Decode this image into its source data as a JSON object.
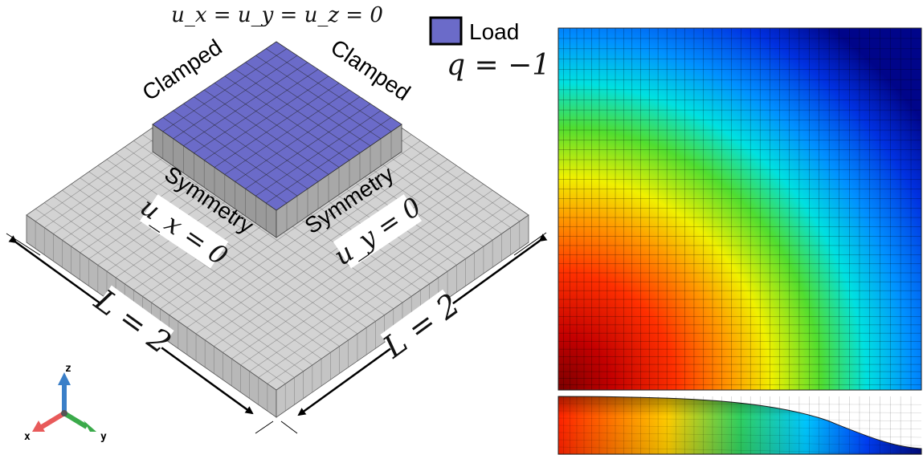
{
  "bc_top": "u_x = u_y = u_z = 0",
  "legend": {
    "label": "Load",
    "color": "#6b6bc9",
    "q": "q = −1"
  },
  "edges": {
    "clamped_left": "Clamped",
    "clamped_right": "Clamped",
    "symmetry_left": "Symmetry",
    "symmetry_right": "Symmetry",
    "ux": "u_x = 0",
    "uy": "u_y = 0"
  },
  "dims": {
    "left": "L = 2",
    "right": "L = 2"
  },
  "axes": {
    "x": "x",
    "y": "y",
    "z": "z"
  },
  "colors": {
    "mesh": "#d2d2d2",
    "top_block": "#6b6bc9",
    "grid": "#555555"
  }
}
